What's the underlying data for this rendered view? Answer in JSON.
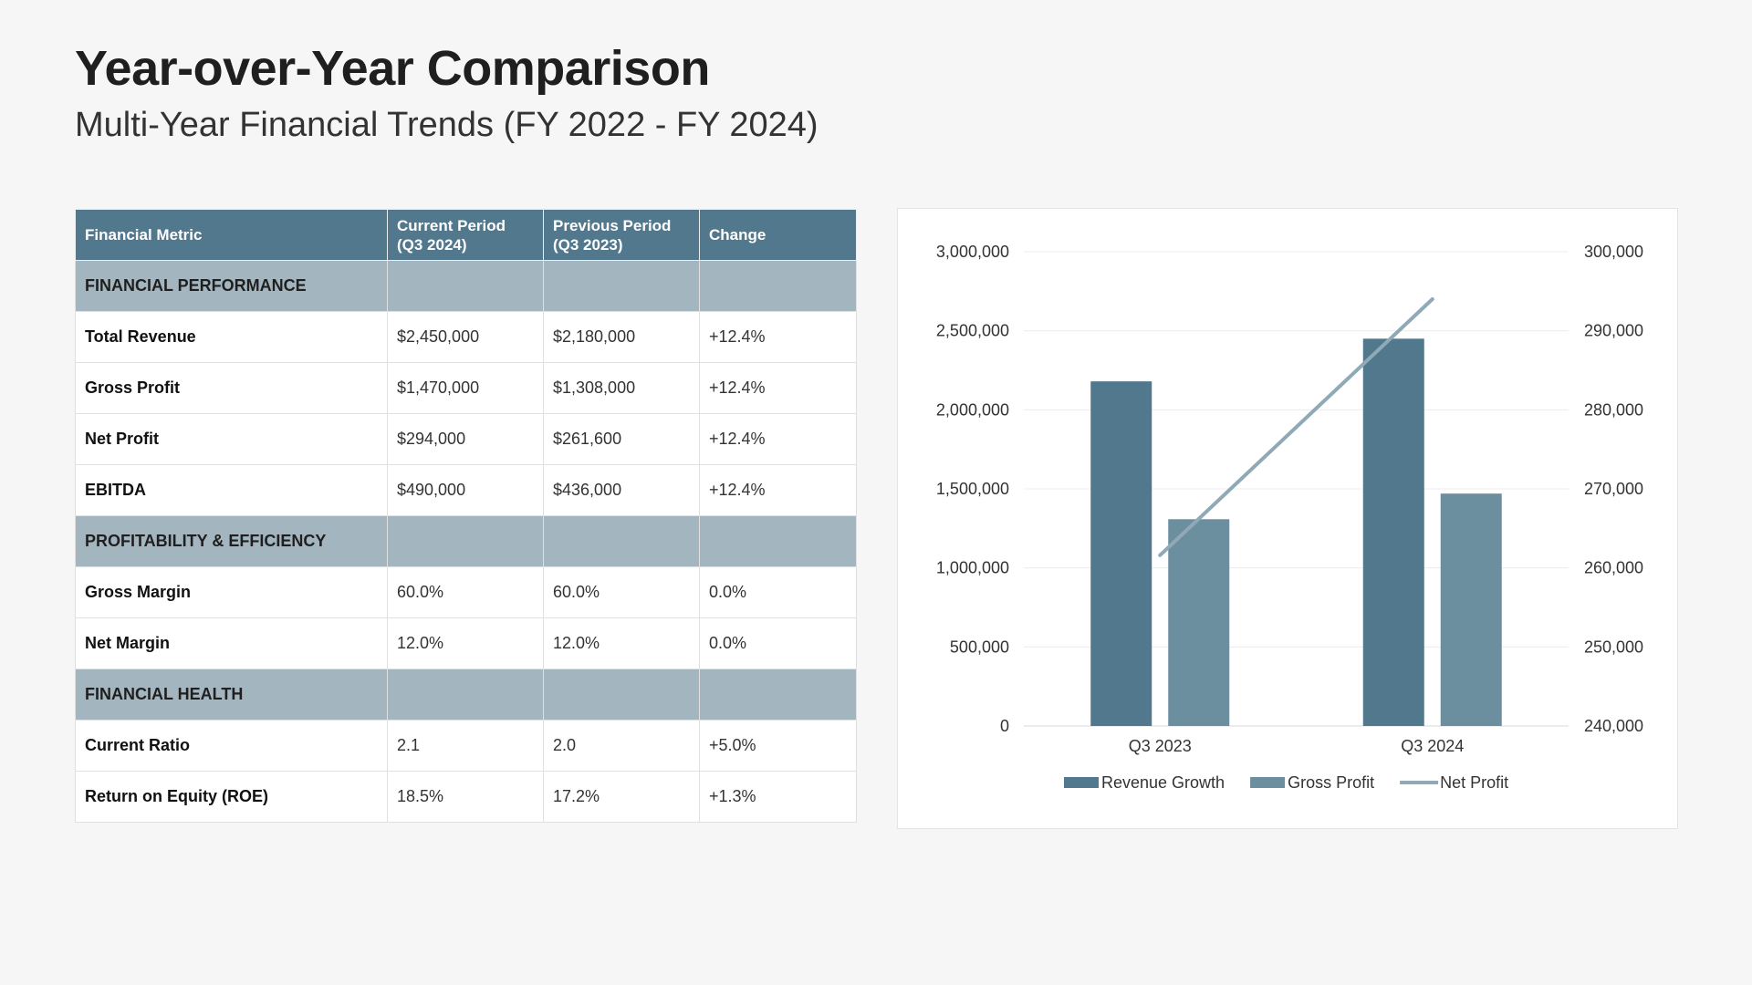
{
  "header": {
    "title": "Year-over-Year Comparison",
    "subtitle": "Multi-Year Financial Trends (FY 2022 - FY 2024)"
  },
  "table": {
    "columns": [
      "Financial Metric",
      "Current Period\n(Q3 2024)",
      "Previous Period\n(Q3 2023)",
      "Change"
    ],
    "sections": [
      {
        "title": "FINANCIAL PERFORMANCE",
        "rows": [
          {
            "metric": "Total Revenue",
            "current": "$2,450,000",
            "previous": "$2,180,000",
            "change": "+12.4%"
          },
          {
            "metric": "Gross Profit",
            "current": "$1,470,000",
            "previous": "$1,308,000",
            "change": "+12.4%"
          },
          {
            "metric": "Net Profit",
            "current": "$294,000",
            "previous": "$261,600",
            "change": "+12.4%"
          },
          {
            "metric": "EBITDA",
            "current": "$490,000",
            "previous": "$436,000",
            "change": "+12.4%"
          }
        ]
      },
      {
        "title": "PROFITABILITY & EFFICIENCY",
        "rows": [
          {
            "metric": "Gross Margin",
            "current": "60.0%",
            "previous": "60.0%",
            "change": "0.0%"
          },
          {
            "metric": "Net Margin",
            "current": "12.0%",
            "previous": "12.0%",
            "change": "0.0%"
          }
        ]
      },
      {
        "title": "FINANCIAL HEALTH",
        "rows": [
          {
            "metric": "Current Ratio",
            "current": "2.1",
            "previous": "2.0",
            "change": "+5.0%"
          },
          {
            "metric": "Return on Equity (ROE)",
            "current": "18.5%",
            "previous": "17.2%",
            "change": "+1.3%"
          }
        ]
      }
    ]
  },
  "chart_data": {
    "type": "bar",
    "categories": [
      "Q3 2023",
      "Q3 2024"
    ],
    "series": [
      {
        "name": "Revenue Growth",
        "type": "bar",
        "axis": "left",
        "values": [
          2180000,
          2450000
        ],
        "color": "#51788c"
      },
      {
        "name": "Gross Profit",
        "type": "bar",
        "axis": "left",
        "values": [
          1308000,
          1470000
        ],
        "color": "#6b8f9f"
      },
      {
        "name": "Net Profit",
        "type": "line",
        "axis": "right",
        "values": [
          261600,
          294000
        ],
        "color": "#8fa9b6"
      }
    ],
    "y_left": {
      "min": 0,
      "max": 3000000,
      "ticks": [
        "0",
        "500,000",
        "1,000,000",
        "1,500,000",
        "2,000,000",
        "2,500,000",
        "3,000,000"
      ]
    },
    "y_right": {
      "min": 240000,
      "max": 300000,
      "ticks": [
        "240,000",
        "250,000",
        "260,000",
        "270,000",
        "280,000",
        "290,000",
        "300,000"
      ]
    },
    "grid": true,
    "legend_position": "bottom"
  }
}
